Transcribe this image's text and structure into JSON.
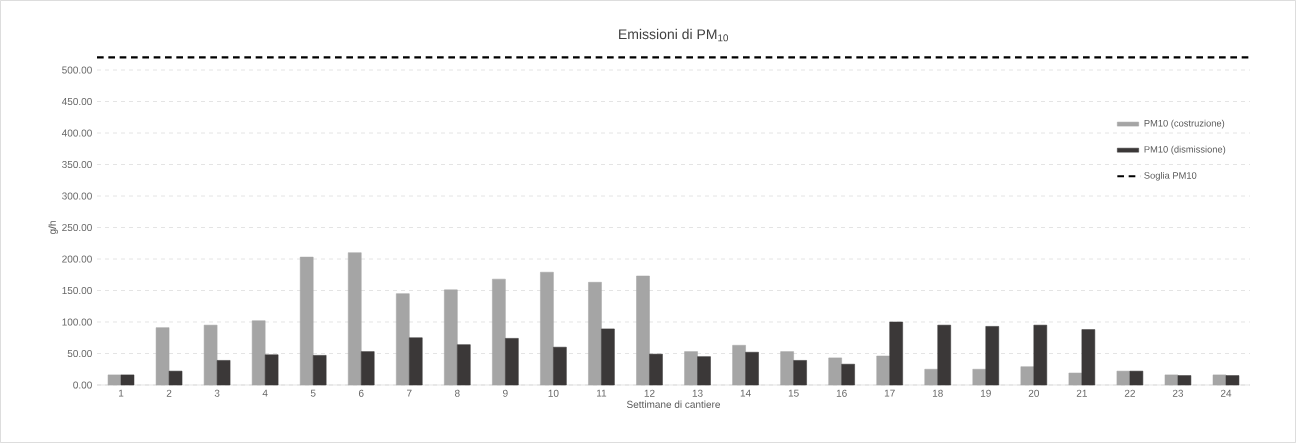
{
  "chart_data": {
    "type": "bar",
    "title": "Emissioni di PM$_{10}$",
    "xlabel": "Settimane di cantiere",
    "ylabel": "g/h",
    "categories": [
      "1",
      "2",
      "3",
      "4",
      "5",
      "6",
      "7",
      "8",
      "9",
      "10",
      "11",
      "12",
      "13",
      "14",
      "15",
      "16",
      "17",
      "18",
      "19",
      "20",
      "21",
      "22",
      "23",
      "24"
    ],
    "series": [
      {
        "name": "PM10 (costruzione)",
        "color": "#a5a5a5",
        "values": [
          16,
          91,
          95,
          102,
          203,
          210,
          145,
          151,
          168,
          179,
          163,
          173,
          53,
          63,
          53,
          43,
          46,
          25,
          25,
          29,
          19,
          22,
          16,
          16
        ]
      },
      {
        "name": "PM10 (dismissione)",
        "color": "#3b3838",
        "values": [
          16,
          22,
          39,
          48,
          47,
          53,
          75,
          64,
          74,
          60,
          89,
          49,
          45,
          52,
          39,
          33,
          100,
          95,
          93,
          95,
          88,
          22,
          15,
          15
        ]
      }
    ],
    "ref_lines": [
      {
        "axis": "y",
        "value": 520,
        "label": "Soglia PM10",
        "color": "#000000",
        "line_style": "dashed"
      }
    ],
    "ylim": [
      0,
      500
    ],
    "yticks": [
      {
        "value": 0,
        "label": "0.00"
      },
      {
        "value": 50,
        "label": "50.00"
      },
      {
        "value": 100,
        "label": "100.00"
      },
      {
        "value": 150,
        "label": "150.00"
      },
      {
        "value": 200,
        "label": "200.00"
      },
      {
        "value": 250,
        "label": "250.00"
      },
      {
        "value": 300,
        "label": "300.00"
      },
      {
        "value": 350,
        "label": "350.00"
      },
      {
        "value": 400,
        "label": "400.00"
      },
      {
        "value": 450,
        "label": "450.00"
      },
      {
        "value": 500,
        "label": "500.00"
      }
    ],
    "grid": "y",
    "legend": "top right"
  }
}
